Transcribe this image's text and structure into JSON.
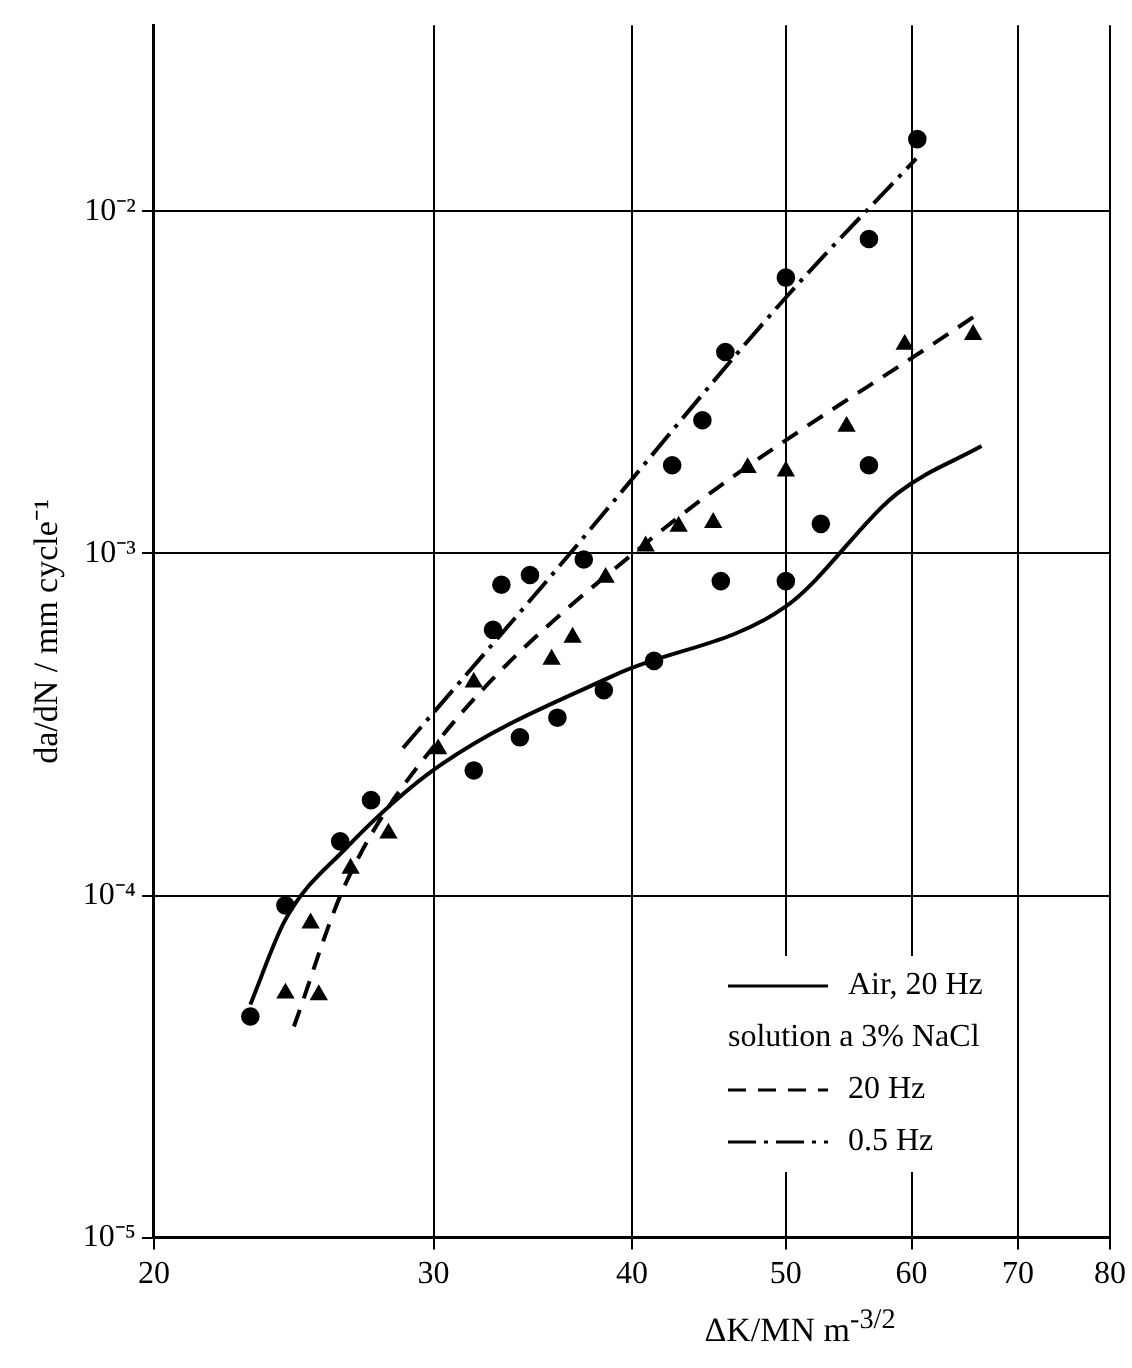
{
  "chart_data": {
    "type": "line",
    "xlabel": "ΔK/MN m$^{-3/2}$",
    "ylabel": "da/dN / mm cycle⁻¹",
    "log": "xy",
    "grid": true,
    "legend": "bottom right",
    "xlim": [
      20,
      80
    ],
    "xticks": [
      20,
      30,
      40,
      50,
      60,
      70,
      80
    ],
    "ylim": [
      1e-05,
      0.035
    ],
    "yticks": [
      {
        "value": 1e-05,
        "label": "10⁻⁵"
      },
      {
        "value": 0.0001,
        "label": "10⁻⁴"
      },
      {
        "value": 0.001,
        "label": "10⁻³"
      },
      {
        "value": 0.01,
        "label": "10⁻²"
      }
    ],
    "annotations": [
      "solution a 3% NaCl"
    ],
    "series": [
      {
        "name": "Air, 20 Hz",
        "color": "#000000",
        "line_style": "solid",
        "marker": "none",
        "x": [
          23.0,
          24.2,
          26.4,
          30.2,
          39.1,
          50,
          58.8,
          66.4
        ],
        "values": [
          4.8e-05,
          8.5e-05,
          0.000137,
          0.000238,
          0.000443,
          0.0007,
          0.0015,
          0.00206
        ]
      },
      {
        "name": "20 Hz",
        "color": "#000000",
        "line_style": "dashed",
        "marker": "none",
        "x": [
          24.5,
          26.4,
          30.2,
          40.9,
          66.4
        ],
        "values": [
          4.14e-05,
          0.000108,
          0.000283,
          0.00108,
          0.0051
        ]
      },
      {
        "name": "0.5 Hz",
        "color": "#000000",
        "line_style": "dashdot",
        "marker": "none",
        "x": [
          28.7,
          35.5,
          50,
          60.4
        ],
        "values": [
          0.00027,
          0.00085,
          0.0056,
          0.01426
        ]
      },
      {
        "type": "scatter",
        "color": "#000000",
        "marker": "circle",
        "x": [
          23.0,
          24.2,
          26.2,
          27.4,
          31.8,
          34.0,
          35.9,
          38.4,
          41.3,
          45.5,
          50,
          52.6,
          56.4
        ],
        "values": [
          4.43e-05,
          9.36e-05,
          0.000144,
          0.00019,
          0.000232,
          0.00029,
          0.000331,
          0.000398,
          0.000485,
          0.00083,
          0.00083,
          0.00122,
          0.00181
        ]
      },
      {
        "type": "scatter",
        "color": "#000000",
        "marker": "triangle",
        "x": [
          24.2,
          25.4,
          25.1,
          26.6,
          28.1,
          30.2,
          31.8,
          35.6,
          36.7,
          38.5,
          40.8,
          42.8,
          45.0,
          47.3,
          50,
          54.6,
          59.4,
          65.6
        ],
        "values": [
          5.18e-05,
          5.12e-05,
          8.3e-05,
          0.00012,
          0.000152,
          0.000268,
          0.00042,
          0.00049,
          0.000568,
          0.00085,
          0.00105,
          0.0012,
          0.00123,
          0.00178,
          0.00174,
          0.00235,
          0.00408,
          0.00436
        ]
      },
      {
        "type": "scatter",
        "color": "#000000",
        "marker": "circle",
        "x": [
          32.7,
          33.1,
          34.5,
          37.3,
          42.4,
          44.3,
          45.8,
          50,
          56.4,
          60.5
        ],
        "values": [
          0.000598,
          0.00081,
          0.000865,
          0.00096,
          0.00181,
          0.00245,
          0.00388,
          0.0064,
          0.0083,
          0.01626
        ]
      }
    ]
  }
}
